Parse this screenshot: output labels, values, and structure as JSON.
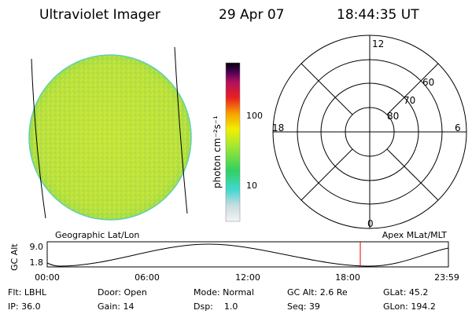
{
  "header": {
    "title": "Ultraviolet Imager",
    "date": "29 Apr 07",
    "time": "18:44:35 UT"
  },
  "colorbar": {
    "unit": "photon cm⁻²s⁻¹",
    "labels": [
      "100",
      "10"
    ]
  },
  "polar": {
    "hour_labels": [
      "12",
      "18",
      "6",
      "0"
    ],
    "lat_labels": [
      "60",
      "70",
      "80"
    ]
  },
  "orbit_plot": {
    "y_label": "GC Alt",
    "y_labels": [
      "9.0",
      "1.8"
    ],
    "left_title": "Geographic Lat/Lon",
    "right_title": "Apex MLat/MLT",
    "x_labels": [
      "00:00",
      "06:00",
      "12:00",
      "18:00",
      "23:59"
    ]
  },
  "status": {
    "rows": [
      [
        "Flt: LBHL",
        "Door: Open",
        "Mode: Normal",
        "GC Alt: 2.6 Re",
        "GLat: 45.2"
      ],
      [
        "IP: 36.0",
        "Gain: 14",
        "Dsp:    1.0",
        "Seq: 39",
        "GLon: 194.2"
      ]
    ]
  }
}
